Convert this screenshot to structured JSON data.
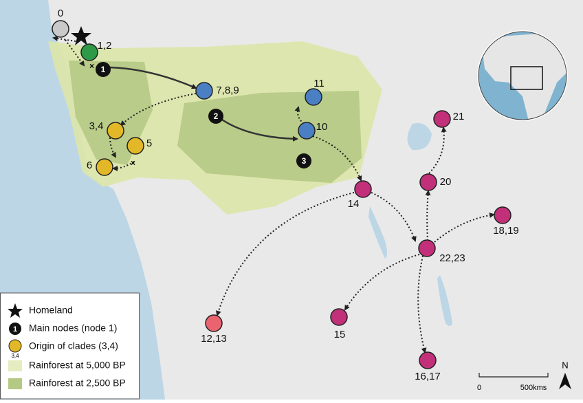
{
  "nodes": [
    {
      "label": "0",
      "color": "#c9c9c9"
    },
    {
      "label": "1,2",
      "color": "#2e9a48"
    },
    {
      "label": "7,8,9",
      "color": "#4a7fc4"
    },
    {
      "label": "11",
      "color": "#4a7fc4"
    },
    {
      "label": "10",
      "color": "#4a7fc4"
    },
    {
      "label": "3,4",
      "color": "#e2b828"
    },
    {
      "label": "5",
      "color": "#e2b828"
    },
    {
      "label": "6",
      "color": "#e2b828"
    },
    {
      "label": "14",
      "color": "#c2307a"
    },
    {
      "label": "21",
      "color": "#c2307a"
    },
    {
      "label": "20",
      "color": "#c2307a"
    },
    {
      "label": "18,19",
      "color": "#c2307a"
    },
    {
      "label": "22,23",
      "color": "#c2307a"
    },
    {
      "label": "12,13",
      "color": "#ea6470"
    },
    {
      "label": "15",
      "color": "#c2307a"
    },
    {
      "label": "16,17",
      "color": "#c2307a"
    }
  ],
  "main_nodes": [
    "1",
    "2",
    "3"
  ],
  "legend": [
    {
      "label": "Homeland"
    },
    {
      "label": "Main nodes (node 1)",
      "marker": "1"
    },
    {
      "label": "Origin of clades (3,4)",
      "marker_note": "3,4"
    },
    {
      "label": "Rainforest at 5,000 BP"
    },
    {
      "label": "Rainforest at 2,500 BP"
    }
  ],
  "scale_bar": {
    "start": "0",
    "end": "500kms"
  },
  "north": "N"
}
